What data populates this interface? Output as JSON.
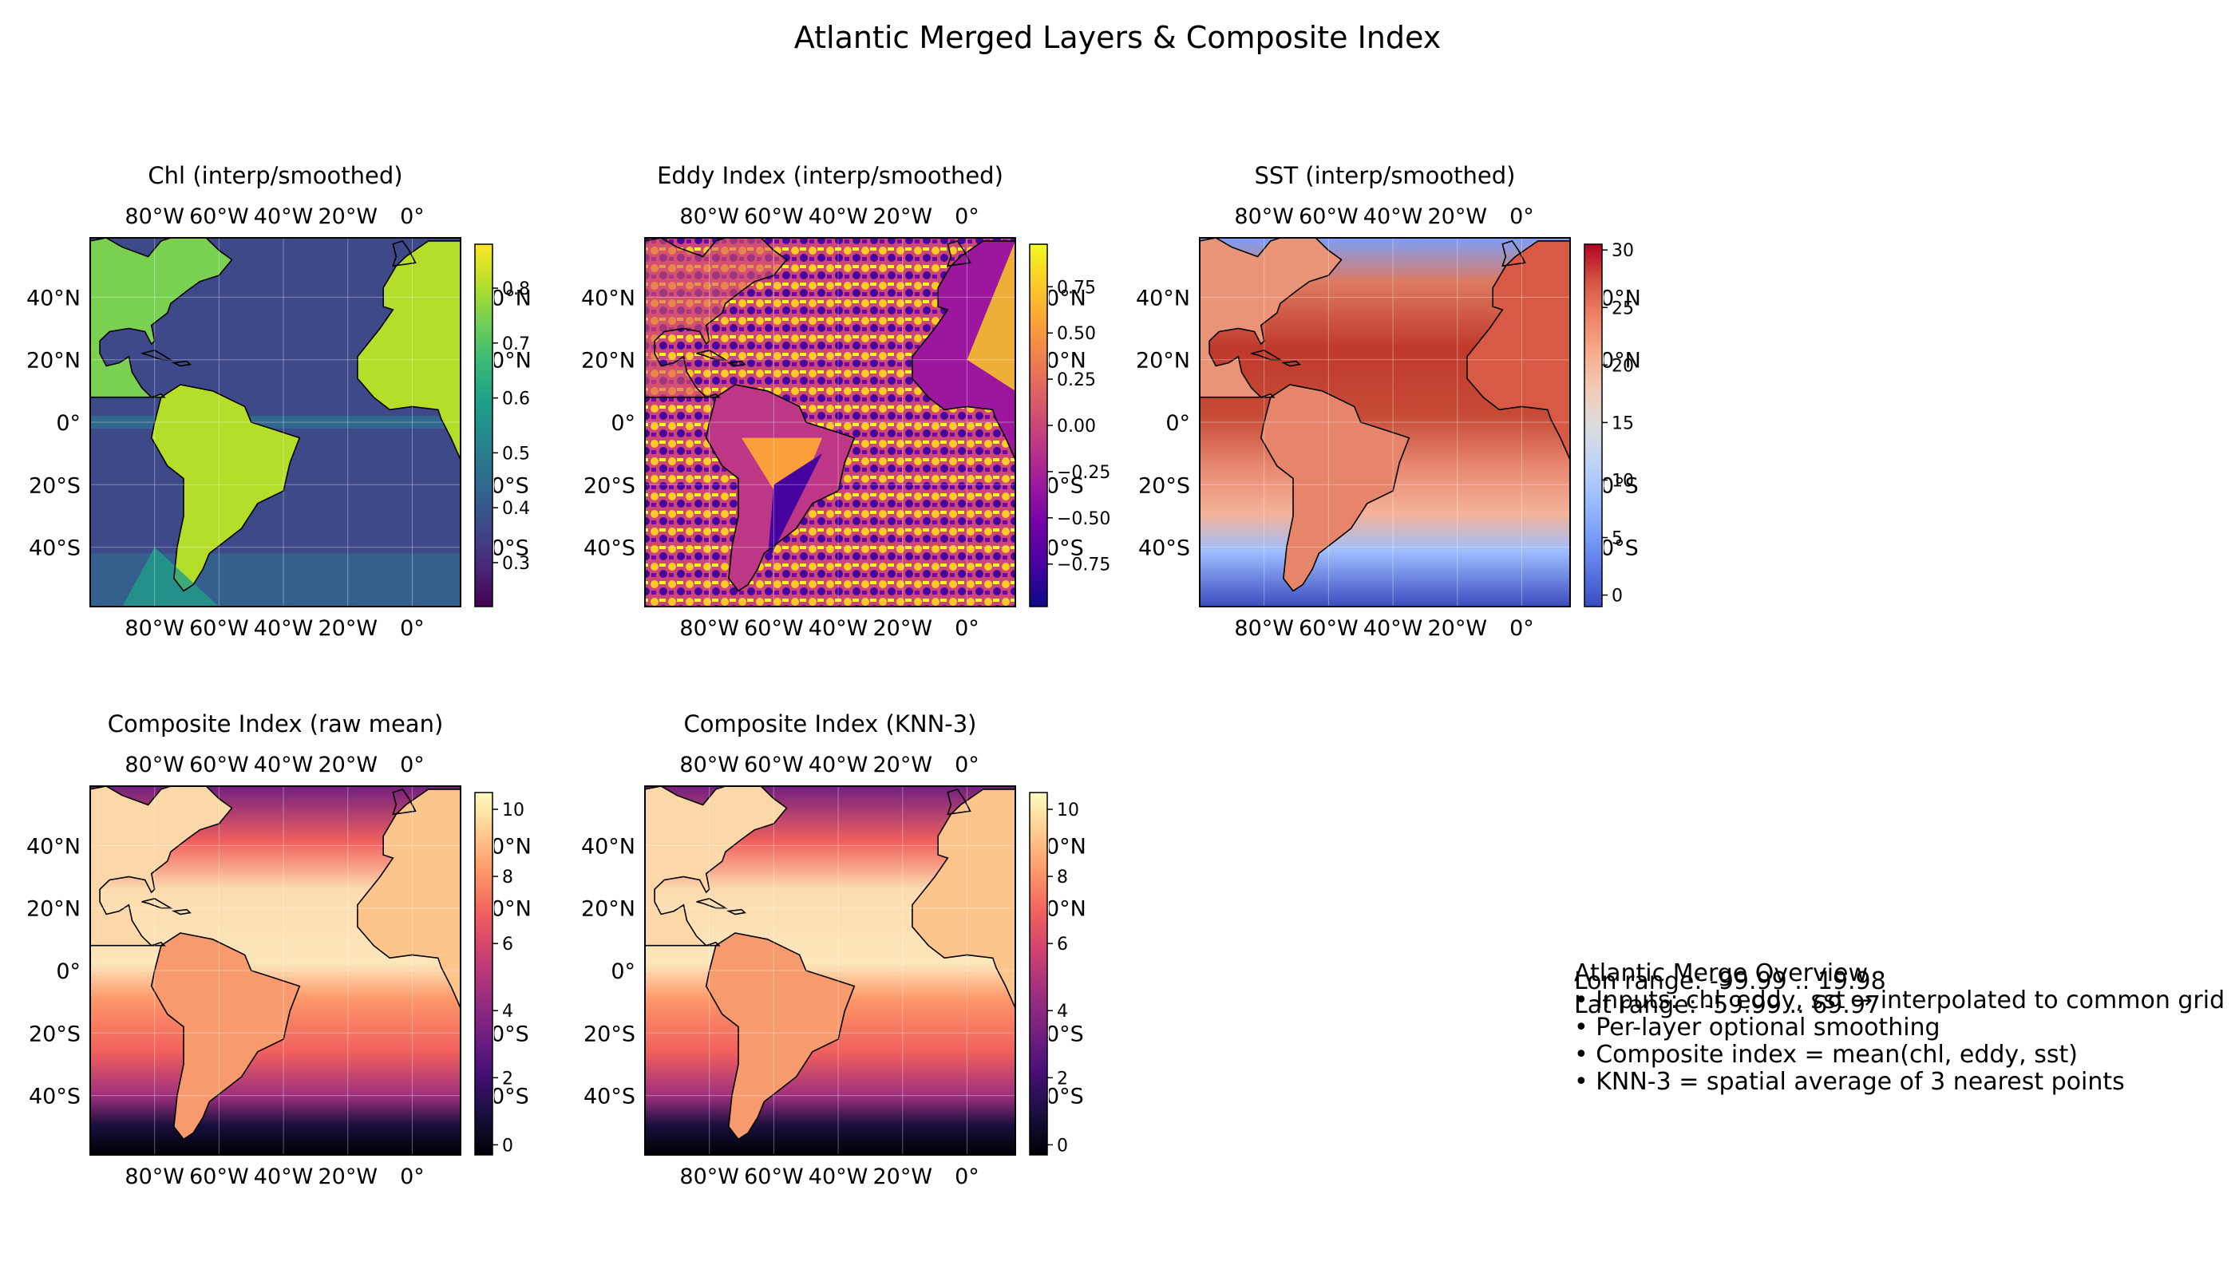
{
  "figure": {
    "title": "Atlantic Merged Layers & Composite Index"
  },
  "info_box": {
    "lines": [
      "Atlantic Merge Overview",
      "• Inputs: chl, eddy, sst → interpolated to common grid",
      "• Per-layer optional smoothing",
      "• Composite index = mean(chl, eddy, sst)",
      "• KNN-3 = spatial average of 3 nearest points"
    ],
    "overlay_lines": [
      "Lon range: -99.99 .. 19.98",
      "Lat range: -59.99 .. 69.97"
    ]
  },
  "chart_data": [
    {
      "type": "heatmap",
      "title": "Chl (interp/smoothed)",
      "x_ticks": [
        "80°W",
        "60°W",
        "40°W",
        "20°W",
        "0°"
      ],
      "y_ticks": [
        "40°N",
        "20°N",
        "0°",
        "20°S",
        "40°S"
      ],
      "colormap": "viridis",
      "colorbar": {
        "ticks": [
          0.3,
          0.4,
          0.5,
          0.6,
          0.7,
          0.8
        ],
        "range": [
          0.22,
          0.88
        ]
      },
      "clipped_right_labels": [
        "0°N",
        "0°N",
        "0°S",
        "0°S"
      ]
    },
    {
      "type": "heatmap",
      "title": "Eddy Index (interp/smoothed)",
      "x_ticks": [
        "80°W",
        "60°W",
        "40°W",
        "20°W",
        "0°"
      ],
      "y_ticks": [
        "40°N",
        "20°N",
        "0°",
        "20°S",
        "40°S"
      ],
      "colormap": "plasma",
      "colorbar": {
        "ticks": [
          -0.75,
          -0.5,
          -0.25,
          0.0,
          0.25,
          0.5,
          0.75
        ],
        "tick_labels": [
          "−0.75",
          "−0.50",
          "−0.25",
          "0.00",
          "0.25",
          "0.50",
          "0.75"
        ],
        "range": [
          -0.98,
          0.98
        ]
      },
      "clipped_right_labels": [
        "0°N",
        "0°N",
        "0°S",
        "0°S"
      ]
    },
    {
      "type": "heatmap",
      "title": "SST (interp/smoothed)",
      "x_ticks": [
        "80°W",
        "60°W",
        "40°W",
        "20°W",
        "0°"
      ],
      "y_ticks": [
        "40°N",
        "20°N",
        "0°",
        "20°S",
        "40°S"
      ],
      "colormap": "coolwarm",
      "colorbar": {
        "ticks": [
          0,
          5,
          10,
          15,
          20,
          25,
          30
        ],
        "range": [
          -1,
          30.5
        ]
      },
      "clipped_right_labels": [
        "0°N",
        "0°N",
        "0°S",
        "0°S"
      ]
    },
    {
      "type": "heatmap",
      "title": "Composite Index (raw mean)",
      "x_ticks": [
        "80°W",
        "60°W",
        "40°W",
        "20°W",
        "0°"
      ],
      "y_ticks": [
        "40°N",
        "20°N",
        "0°",
        "20°S",
        "40°S"
      ],
      "colormap": "magma",
      "colorbar": {
        "ticks": [
          0,
          2,
          4,
          6,
          8,
          10
        ],
        "range": [
          -0.3,
          10.5
        ]
      },
      "clipped_right_labels": [
        "0°N",
        "0°N",
        "0°S",
        "0°S"
      ]
    },
    {
      "type": "heatmap",
      "title": "Composite Index (KNN-3)",
      "x_ticks": [
        "80°W",
        "60°W",
        "40°W",
        "20°W",
        "0°"
      ],
      "y_ticks": [
        "40°N",
        "20°N",
        "0°",
        "20°S",
        "40°S"
      ],
      "colormap": "magma",
      "colorbar": {
        "ticks": [
          0,
          2,
          4,
          6,
          8,
          10
        ],
        "range": [
          -0.3,
          10.5
        ]
      },
      "clipped_right_labels": [
        "0°N",
        "0°N",
        "0°S",
        "0°S"
      ]
    }
  ]
}
